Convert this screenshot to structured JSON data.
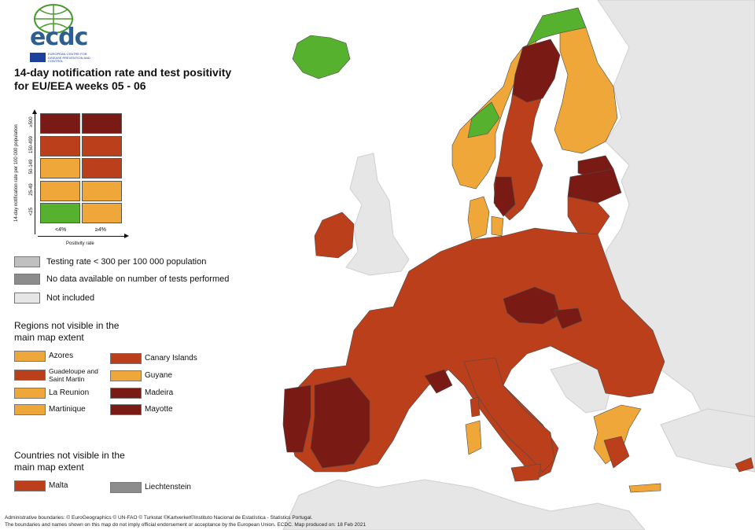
{
  "title": {
    "line1": "14-day notification rate and test positivity",
    "line2": "for EU/EEA weeks 05 - 06"
  },
  "logo": {
    "text": "ecdc",
    "org": "EUROPEAN CENTRE FOR DISEASE PREVENTION AND CONTROL"
  },
  "colors": {
    "dark_red": "#7a1a14",
    "red": "#bc3f1c",
    "orange": "#f0a73a",
    "green": "#56b22e",
    "grey_testing": "#c0c0c0",
    "grey_nodata": "#8c8c8c",
    "not_included": "#e6e6e6",
    "sea": "#ffffff"
  },
  "matrix": {
    "y_axis_title": "14-day notification rate per 100 000 population",
    "x_axis_title": "Positivity rate",
    "y_ticks": [
      "≥500",
      "150-499",
      "50-149",
      "25-49",
      "<25"
    ],
    "x_ticks": [
      "<4%",
      "≥4%"
    ],
    "cells": [
      [
        "dark_red",
        "dark_red"
      ],
      [
        "red",
        "red"
      ],
      [
        "orange",
        "red"
      ],
      [
        "orange",
        "orange"
      ],
      [
        "green",
        "orange"
      ]
    ]
  },
  "legend": [
    {
      "label": "Testing rate < 300 per 100 000 population",
      "color": "#c0c0c0"
    },
    {
      "label": "No data available on number of tests performed",
      "color": "#8c8c8c"
    },
    {
      "label": "Not included",
      "color": "#e6e6e6"
    }
  ],
  "regions_title": "Regions not visible in the main map extent",
  "regions": [
    {
      "label": "Azores",
      "color": "#f0a73a"
    },
    {
      "label": "Guadeloupe and Saint Martin",
      "color": "#bc3f1c"
    },
    {
      "label": "La Reunion",
      "color": "#f0a73a"
    },
    {
      "label": "Martinique",
      "color": "#f0a73a"
    },
    {
      "label": "Canary Islands",
      "color": "#bc3f1c"
    },
    {
      "label": "Guyane",
      "color": "#f0a73a"
    },
    {
      "label": "Madeira",
      "color": "#7a1a14"
    },
    {
      "label": "Mayotte",
      "color": "#7a1a14"
    }
  ],
  "countries_title": "Countries not visible in the main map extent",
  "countries": [
    {
      "label": "Malta",
      "color": "#bc3f1c"
    },
    {
      "label": "Liechtenstein",
      "color": "#8c8c8c"
    }
  ],
  "footer": {
    "line1": "Administrative boundaries: © EuroGeographics © UN-FAO © Turkstat ©Kartverket©Instituto Nacional de Estatística - Statistics Portugal.",
    "line2": "The boundaries and names shown on this map do not imply official endorsement or acceptance by the European Union. ECDC. Map produced on: 18 Feb 2021"
  }
}
